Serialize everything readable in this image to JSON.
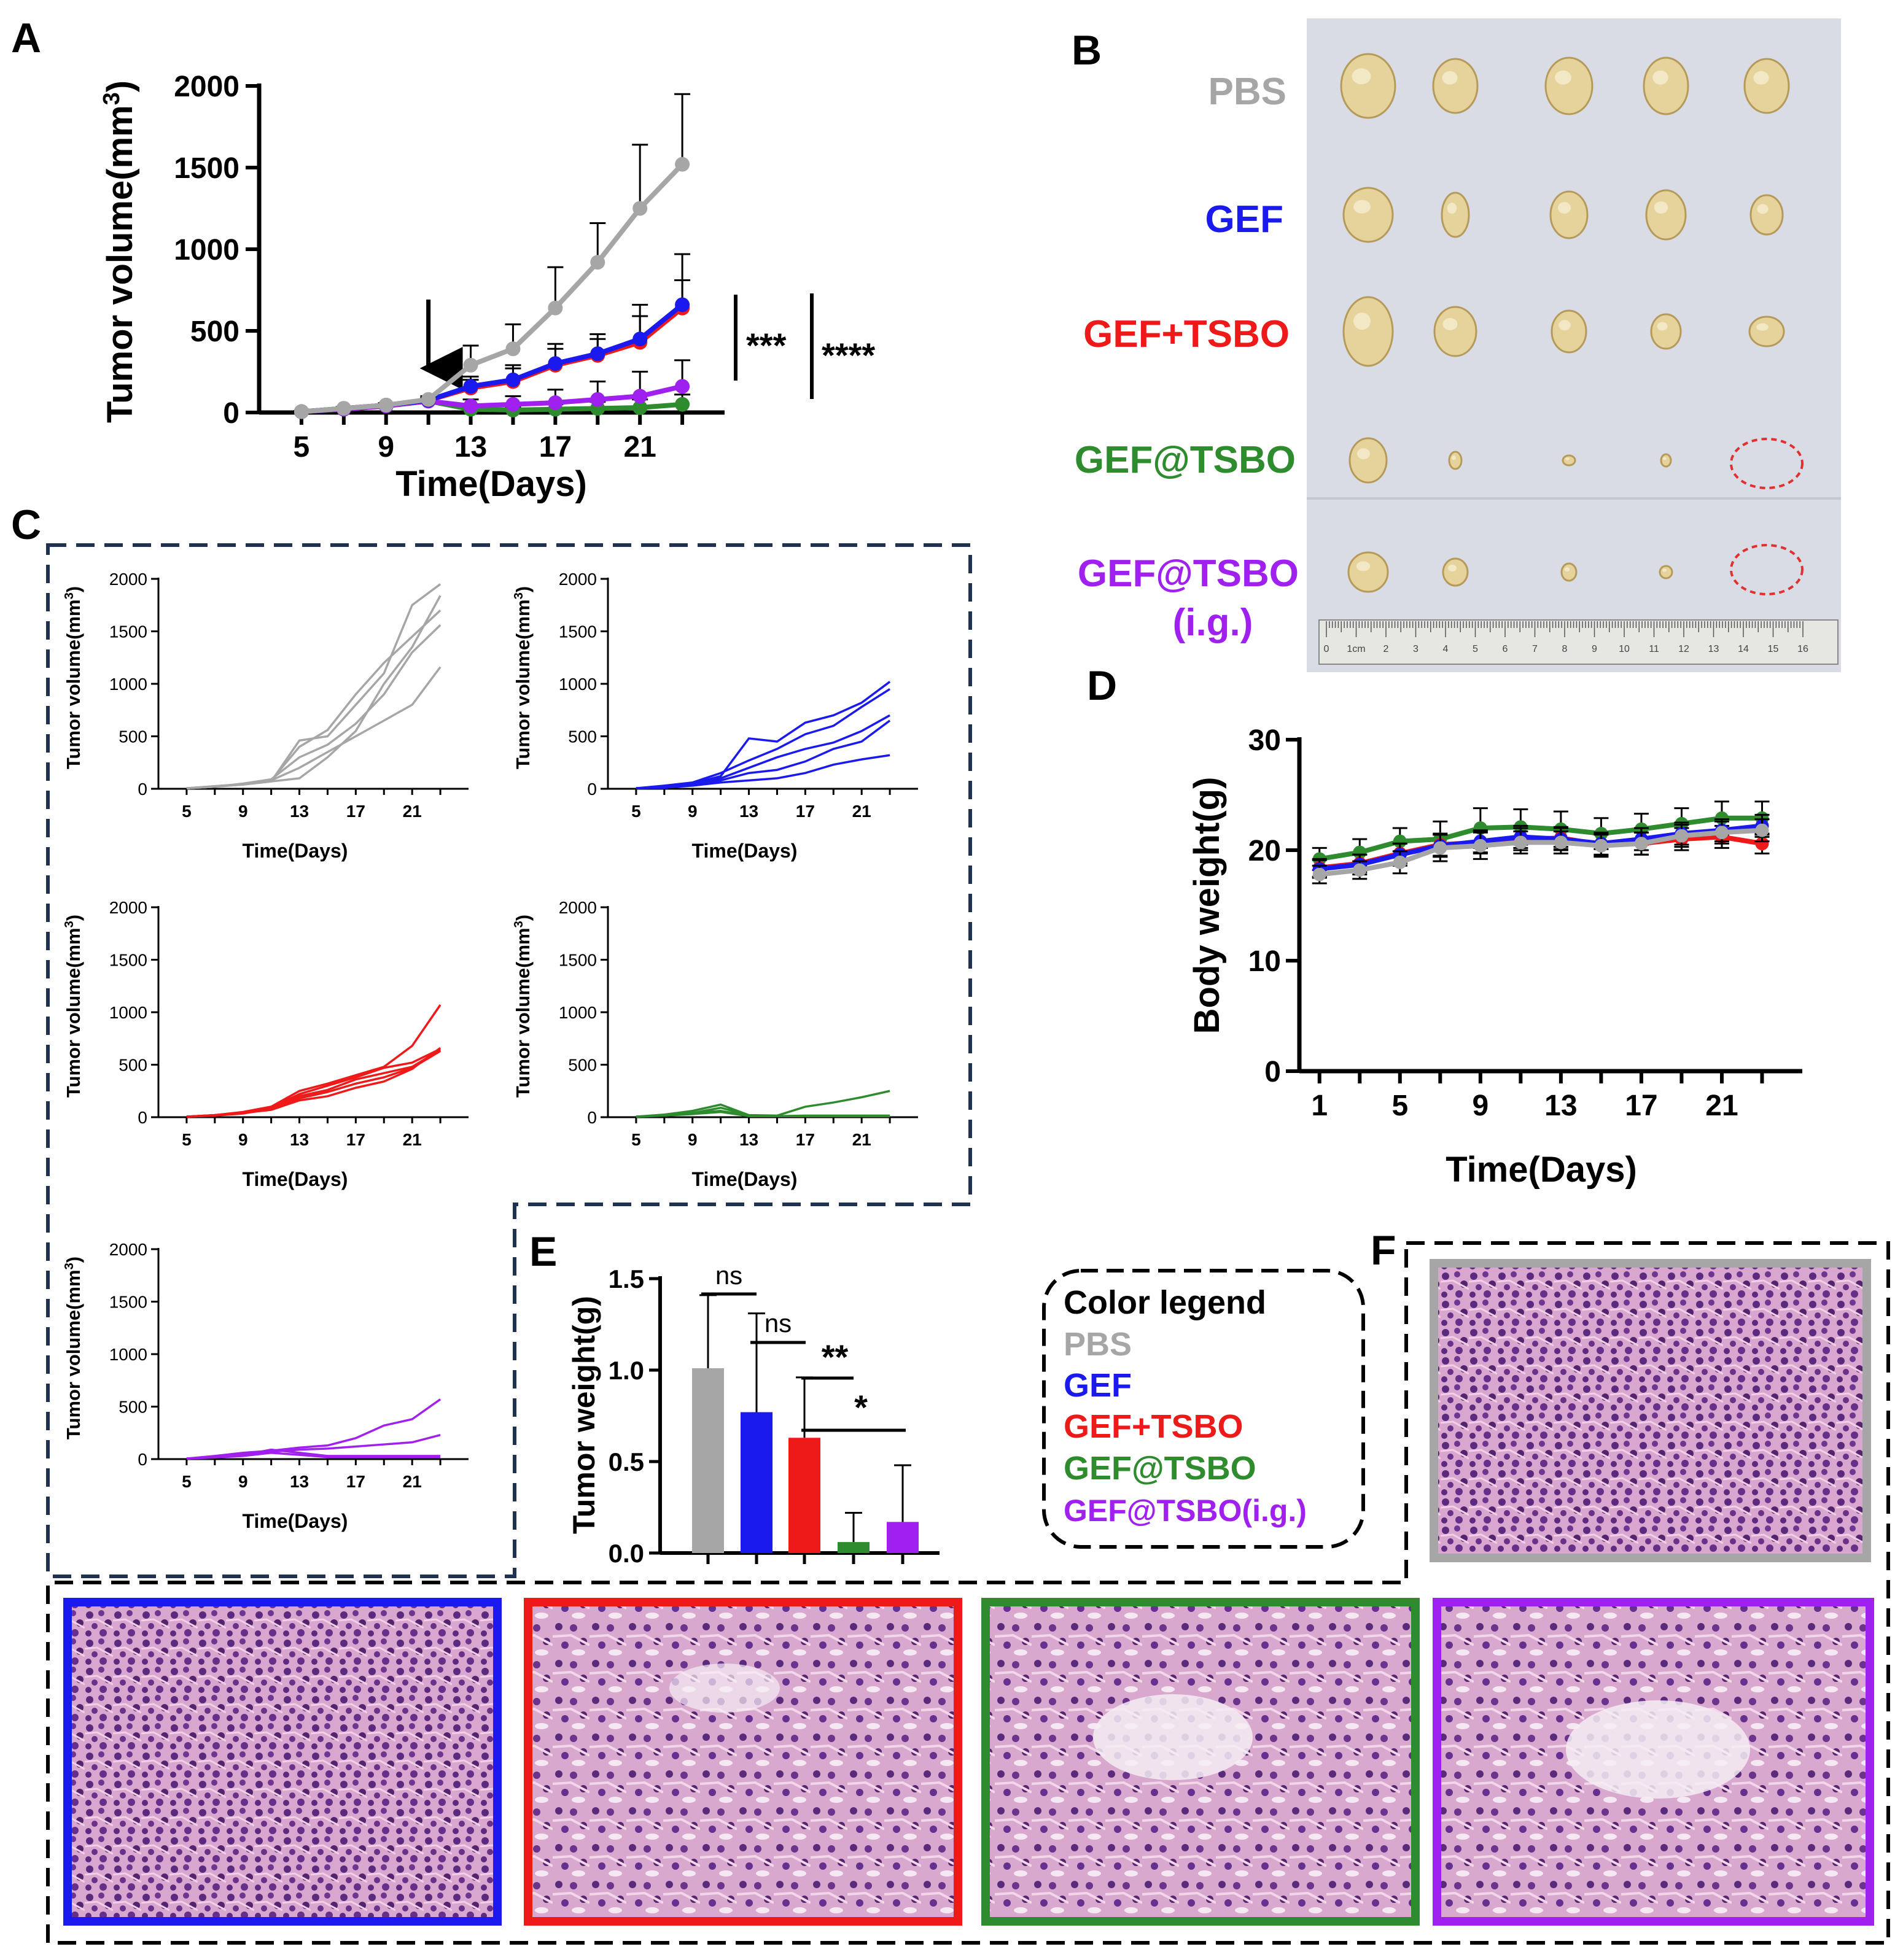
{
  "panels": {
    "A": "A",
    "B": "B",
    "C": "C",
    "D": "D",
    "E": "E",
    "F": "F"
  },
  "colors": {
    "PBS": "#a6a6a6",
    "GEF": "#1a1aee",
    "GEF_TSBO": "#ee1a1a",
    "GEF_at_TSBO": "#2e8b2e",
    "GEF_at_TSBO_ig": "#a020f0",
    "frame": "#1f3350",
    "black": "#000000"
  },
  "legend": {
    "title": "Color legend",
    "items": [
      "PBS",
      "GEF",
      "GEF+TSBO",
      "GEF@TSBO",
      "GEF@TSBO(i.g.)"
    ]
  },
  "photo_labels": [
    "PBS",
    "GEF",
    "GEF+TSBO",
    "GEF@TSBO",
    "GEF@TSBO",
    "(i.g.)"
  ],
  "ruler_ticks": [
    "0",
    "1cm",
    "2",
    "3",
    "4",
    "5",
    "6",
    "7",
    "8",
    "9",
    "10",
    "11",
    "12",
    "13",
    "14",
    "15",
    "16"
  ],
  "chart_data": [
    {
      "panel": "A",
      "type": "line",
      "xlabel": "Time(Days)",
      "ylabel": "Tumor volume(mm3)",
      "xticks": [
        5,
        9,
        13,
        17,
        21
      ],
      "yticks": [
        0,
        500,
        1000,
        1500,
        2000
      ],
      "xlim": [
        3,
        25
      ],
      "ylim": [
        0,
        2000
      ],
      "x": [
        5,
        7,
        9,
        11,
        13,
        15,
        17,
        19,
        21,
        23
      ],
      "series": [
        {
          "name": "PBS",
          "values": [
            5,
            25,
            45,
            80,
            290,
            390,
            640,
            920,
            1250,
            1520
          ],
          "err": [
            3,
            8,
            12,
            20,
            120,
            150,
            250,
            240,
            390,
            430
          ]
        },
        {
          "name": "GEF",
          "values": [
            5,
            25,
            45,
            75,
            160,
            200,
            300,
            360,
            450,
            660
          ],
          "err": [
            3,
            8,
            10,
            20,
            60,
            90,
            120,
            120,
            210,
            310
          ]
        },
        {
          "name": "GEF+TSBO",
          "values": [
            5,
            25,
            45,
            75,
            150,
            190,
            290,
            350,
            430,
            640
          ],
          "err": [
            3,
            8,
            10,
            20,
            50,
            80,
            100,
            100,
            160,
            170
          ]
        },
        {
          "name": "GEF@TSBO",
          "values": [
            5,
            20,
            40,
            70,
            20,
            15,
            20,
            25,
            30,
            50
          ],
          "err": [
            3,
            6,
            10,
            20,
            20,
            20,
            30,
            40,
            50,
            60
          ]
        },
        {
          "name": "GEF@TSBO(i.g.)",
          "values": [
            5,
            20,
            40,
            70,
            40,
            50,
            60,
            80,
            100,
            160
          ],
          "err": [
            3,
            6,
            10,
            20,
            40,
            50,
            80,
            110,
            150,
            160
          ]
        }
      ],
      "arrow_at_day": 11,
      "significance": [
        "***",
        "****"
      ]
    },
    {
      "panel": "C",
      "type": "line",
      "xlabel": "Time(Days)",
      "ylabel": "Tumor volume(mm3)",
      "xticks": [
        5,
        9,
        13,
        17,
        21
      ],
      "yticks": [
        0,
        500,
        1000,
        1500,
        2000
      ],
      "ylim": [
        0,
        2000
      ],
      "x": [
        5,
        7,
        9,
        11,
        13,
        15,
        17,
        19,
        21,
        23
      ],
      "groups": [
        {
          "group": "PBS",
          "lines": [
            [
              5,
              20,
              40,
              70,
              460,
              500,
              800,
              1100,
              1750,
              1950
            ],
            [
              5,
              25,
              45,
              80,
              400,
              560,
              900,
              1200,
              1450,
              1700
            ],
            [
              5,
              20,
              50,
              90,
              300,
              420,
              620,
              900,
              1300,
              1560
            ],
            [
              5,
              25,
              45,
              80,
              200,
              350,
              500,
              650,
              800,
              1160
            ],
            [
              5,
              20,
              40,
              70,
              100,
              300,
              550,
              1000,
              1350,
              1840
            ]
          ]
        },
        {
          "group": "GEF",
          "lines": [
            [
              5,
              20,
              50,
              120,
              480,
              450,
              630,
              700,
              820,
              1020
            ],
            [
              5,
              30,
              60,
              150,
              270,
              380,
              520,
              600,
              780,
              950
            ],
            [
              5,
              20,
              40,
              100,
              200,
              300,
              380,
              440,
              550,
              700
            ],
            [
              5,
              15,
              35,
              80,
              150,
              180,
              260,
              380,
              450,
              650
            ],
            [
              5,
              10,
              30,
              60,
              80,
              100,
              150,
              230,
              280,
              320
            ]
          ]
        },
        {
          "group": "GEF+TSBO",
          "lines": [
            [
              5,
              20,
              50,
              100,
              250,
              320,
              400,
              480,
              680,
              1070
            ],
            [
              5,
              20,
              40,
              90,
              220,
              300,
              380,
              470,
              520,
              650
            ],
            [
              5,
              20,
              45,
              85,
              200,
              260,
              360,
              420,
              480,
              640
            ],
            [
              5,
              15,
              35,
              80,
              180,
              240,
              320,
              380,
              470,
              630
            ],
            [
              5,
              20,
              40,
              70,
              160,
              200,
              280,
              340,
              460,
              660
            ]
          ]
        },
        {
          "group": "GEF@TSBO",
          "lines": [
            [
              5,
              20,
              40,
              90,
              20,
              15,
              100,
              140,
              190,
              250
            ],
            [
              5,
              25,
              60,
              120,
              20,
              10,
              15,
              15,
              15,
              15
            ],
            [
              5,
              20,
              40,
              60,
              15,
              10,
              10,
              10,
              10,
              10
            ],
            [
              5,
              15,
              30,
              50,
              10,
              10,
              10,
              10,
              10,
              10
            ]
          ]
        },
        {
          "group": "GEF@TSBO(i.g.)",
          "lines": [
            [
              5,
              30,
              60,
              80,
              110,
              130,
              200,
              320,
              380,
              570
            ],
            [
              5,
              20,
              40,
              70,
              90,
              100,
              120,
              140,
              160,
              230
            ],
            [
              5,
              20,
              40,
              90,
              60,
              30,
              30,
              30,
              30,
              30
            ],
            [
              5,
              15,
              30,
              60,
              40,
              20,
              20,
              20,
              20,
              20
            ]
          ]
        }
      ]
    },
    {
      "panel": "D",
      "type": "line",
      "xlabel": "Time(Days)",
      "ylabel": "Body weight(g)",
      "xticks": [
        1,
        5,
        9,
        13,
        17,
        21
      ],
      "yticks": [
        0,
        10,
        20,
        30
      ],
      "xlim": [
        0,
        25
      ],
      "ylim": [
        0,
        30
      ],
      "x": [
        1,
        3,
        5,
        7,
        9,
        11,
        13,
        15,
        17,
        19,
        21,
        23
      ],
      "series": [
        {
          "name": "PBS",
          "values": [
            17.8,
            18.2,
            18.9,
            20.2,
            20.4,
            20.7,
            20.7,
            20.4,
            20.6,
            21.3,
            21.6,
            21.8
          ],
          "err": [
            0.8,
            0.8,
            1.0,
            1.2,
            1.2,
            1.0,
            1.0,
            1.0,
            1.0,
            1.0,
            1.0,
            1.0
          ]
        },
        {
          "name": "GEF",
          "values": [
            18.3,
            18.7,
            19.6,
            20.4,
            20.8,
            21.2,
            21.0,
            20.6,
            21.0,
            21.5,
            21.8,
            22.2
          ],
          "err": [
            0.8,
            0.9,
            1.0,
            1.0,
            1.0,
            1.0,
            1.0,
            1.0,
            1.0,
            1.0,
            1.0,
            1.0
          ]
        },
        {
          "name": "GEF+TSBO",
          "values": [
            18.4,
            18.8,
            19.7,
            20.5,
            20.7,
            21.0,
            21.1,
            20.5,
            20.6,
            21.0,
            21.2,
            20.6
          ],
          "err": [
            0.8,
            0.8,
            0.9,
            1.0,
            1.0,
            1.0,
            1.0,
            1.0,
            1.0,
            1.0,
            1.0,
            0.9
          ]
        },
        {
          "name": "GEF@TSBO",
          "values": [
            19.2,
            19.8,
            20.8,
            21.0,
            22.0,
            22.1,
            21.9,
            21.5,
            21.9,
            22.4,
            22.9,
            22.9
          ],
          "err": [
            1.0,
            1.2,
            1.2,
            1.6,
            1.8,
            1.6,
            1.6,
            1.4,
            1.4,
            1.4,
            1.5,
            1.5
          ]
        }
      ]
    },
    {
      "panel": "E",
      "type": "bar",
      "ylabel": "Tumor weight(g)",
      "categories": [
        "PBS",
        "GEF",
        "GEF+TSBO",
        "GEF@TSBO",
        "GEF@TSBO(i.g.)"
      ],
      "values": [
        1.01,
        0.77,
        0.63,
        0.06,
        0.17
      ],
      "err": [
        0.4,
        0.54,
        0.33,
        0.16,
        0.31
      ],
      "yticks": [
        "0.0",
        "0.5",
        "1.0",
        "1.5"
      ],
      "ylim": [
        0,
        1.5
      ],
      "significance": [
        {
          "label": "ns",
          "from": 0,
          "to": 1
        },
        {
          "label": "ns",
          "from": 1,
          "to": 2
        },
        {
          "label": "**",
          "from": 2,
          "to": 3
        },
        {
          "label": "*",
          "from": 2,
          "to": 4
        }
      ]
    }
  ]
}
